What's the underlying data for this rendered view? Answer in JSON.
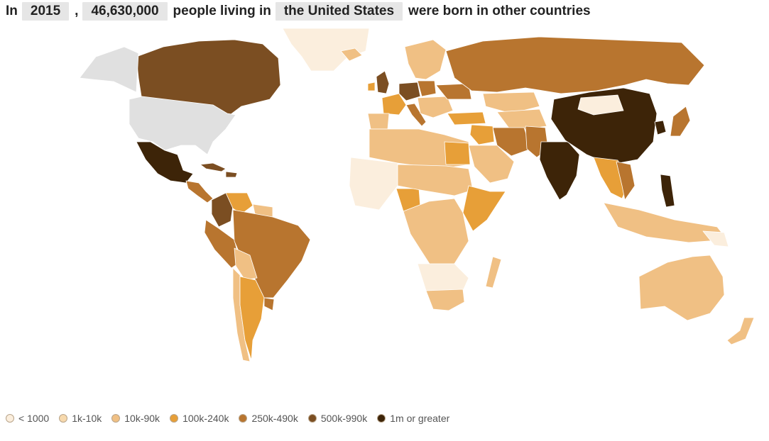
{
  "headline": {
    "prefix": "In",
    "year": "2015",
    "comma": ",",
    "count": "46,630,000",
    "middle": "people living in",
    "country": "the United States",
    "suffix": "were born in other countries"
  },
  "legend": [
    {
      "label": "< 1000",
      "color": "#fbeedd"
    },
    {
      "label": "1k-10k",
      "color": "#f7d9ad"
    },
    {
      "label": "10k-90k",
      "color": "#f0c084"
    },
    {
      "label": "100k-240k",
      "color": "#e79f38"
    },
    {
      "label": "250k-490k",
      "color": "#b8752f"
    },
    {
      "label": "500k-990k",
      "color": "#7b4e22"
    },
    {
      "label": "1m or greater",
      "color": "#3d2408"
    }
  ],
  "map_colors": {
    "selected_country": "#e0e0e0",
    "no_data": "#fbeedd"
  }
}
